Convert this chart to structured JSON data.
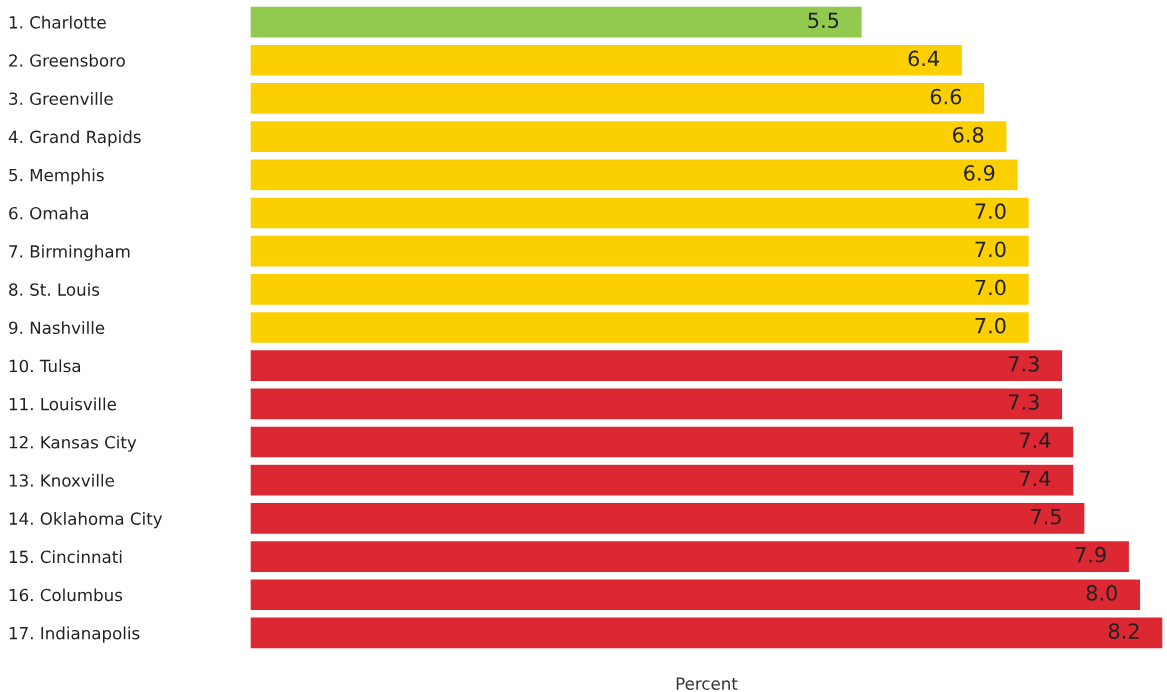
{
  "chart_data": {
    "type": "bar",
    "orientation": "horizontal",
    "xlabel": "Percent",
    "categories": [
      "1. Charlotte",
      "2. Greensboro",
      "3. Greenville",
      "4. Grand Rapids",
      "5. Memphis",
      "6. Omaha",
      "7. Birmingham",
      "8. St. Louis",
      "9. Nashville",
      "10. Tulsa",
      "11. Louisville",
      "12. Kansas City",
      "13. Knoxville",
      "14. Oklahoma City",
      "15. Cincinnati",
      "16. Columbus",
      "17. Indianapolis"
    ],
    "values": [
      5.5,
      6.4,
      6.6,
      6.8,
      6.9,
      7.0,
      7.0,
      7.0,
      7.0,
      7.3,
      7.3,
      7.4,
      7.4,
      7.5,
      7.9,
      8.0,
      8.2
    ],
    "value_labels": [
      "5.5",
      "6.4",
      "6.6",
      "6.8",
      "6.9",
      "7.0",
      "7.0",
      "7.0",
      "7.0",
      "7.3",
      "7.3",
      "7.4",
      "7.4",
      "7.5",
      "7.9",
      "8.0",
      "8.2"
    ],
    "colors": [
      "#92c94f",
      "#fcd000",
      "#fcd000",
      "#fcd000",
      "#fcd000",
      "#fcd000",
      "#fcd000",
      "#fcd000",
      "#fcd000",
      "#dc2832",
      "#dc2832",
      "#dc2832",
      "#dc2832",
      "#dc2832",
      "#dc2832",
      "#dc2832",
      "#dc2832"
    ],
    "xlim": [
      0,
      8.2
    ],
    "grid": false,
    "legend": false
  }
}
